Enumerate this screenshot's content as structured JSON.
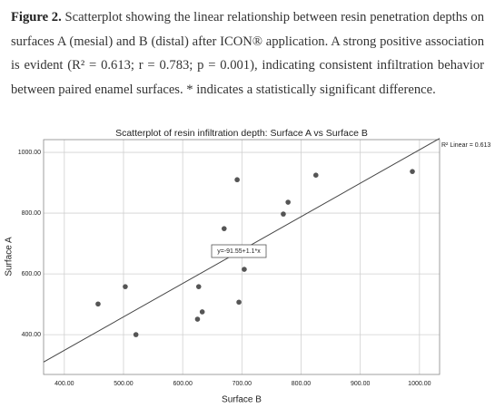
{
  "caption": {
    "label": "Figure 2.",
    "text": "Scatterplot showing the linear relationship between resin penetration depths on surfaces A (mesial) and B (distal) after ICON® application. A strong positive association is evident (R² = 0.613; r = 0.783; p = 0.001), indicating consistent infiltration behavior between paired enamel surfaces. * indicates a statistically significant difference."
  },
  "chart_data": {
    "type": "scatter",
    "title": "Scatterplot of resin infiltration depth: Surface A vs Surface B",
    "x_label": "Surface B",
    "y_label": "Surface A",
    "x": [
      457,
      503,
      521,
      627,
      625,
      633,
      670,
      692,
      695,
      704,
      770,
      778,
      825,
      988
    ],
    "values": [
      501,
      558,
      400,
      558,
      451,
      475,
      749,
      910,
      507,
      615,
      797,
      836,
      925,
      937
    ],
    "color": "#555555",
    "xlim": [
      365,
      1034
    ],
    "ylim": [
      269,
      1042
    ],
    "xticks": [
      {
        "value": 400,
        "label": "400.00"
      },
      {
        "value": 500,
        "label": "500.00"
      },
      {
        "value": 600,
        "label": "600.00"
      },
      {
        "value": 700,
        "label": "700.00"
      },
      {
        "value": 800,
        "label": "800.00"
      },
      {
        "value": 900,
        "label": "900.00"
      },
      {
        "value": 1000,
        "label": "1000.00"
      }
    ],
    "yticks": [
      {
        "value": 400,
        "label": "400.00"
      },
      {
        "value": 600,
        "label": "600.00"
      },
      {
        "value": 800,
        "label": "800.00"
      },
      {
        "value": 1000,
        "label": "1000.00"
      }
    ],
    "grid": true,
    "fit": {
      "intercept": -91.55,
      "slope": 1.1,
      "equation": "y=-91.55+1.1*x",
      "legend": "R² Linear = 0.613"
    }
  }
}
